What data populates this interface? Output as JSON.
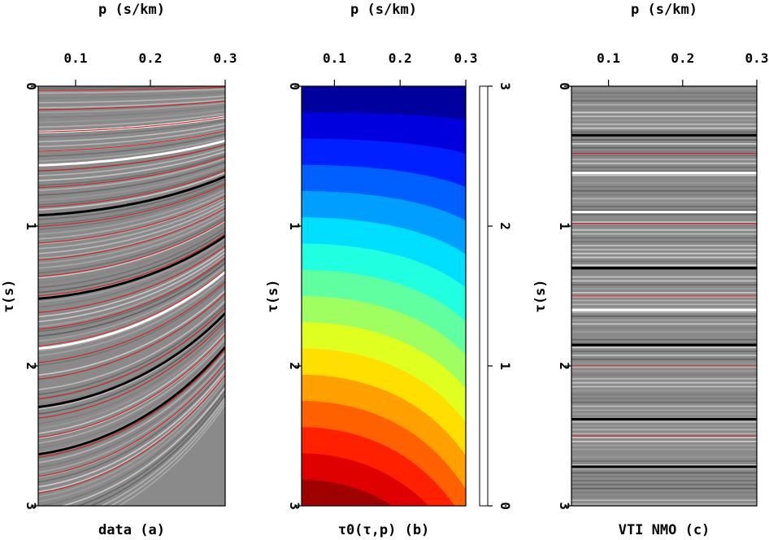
{
  "chart_data": [
    {
      "type": "seismic-image",
      "title": "p (s/km)",
      "xlabel": "p (s/km)",
      "ylabel": "τ(s)",
      "caption": "data (a)",
      "xlim": [
        0.05,
        0.3
      ],
      "ylim": [
        0,
        3
      ],
      "xticks": [
        0.1,
        0.2,
        0.3
      ],
      "yticks": [
        0,
        1,
        2,
        3
      ],
      "xtick_labels": [
        "0.1",
        "0.2",
        "0.3"
      ],
      "ytick_labels": [
        "0",
        "1",
        "2",
        "3"
      ],
      "colormap": "grayscale",
      "overlay": "red traveltime curves",
      "red_curves_tau0": [
        0.08,
        0.22,
        0.38,
        0.52,
        0.66,
        0.78,
        0.92,
        1.06,
        1.18,
        1.3,
        1.42,
        1.56,
        1.68,
        1.8,
        1.92,
        2.04,
        2.16,
        2.3,
        2.44,
        2.58,
        2.72,
        2.86,
        2.98
      ],
      "strong_events": [
        {
          "tau0": 0.38,
          "polarity": "white"
        },
        {
          "tau0": 0.62,
          "polarity": "white"
        },
        {
          "tau0": 0.98,
          "polarity": "black"
        },
        {
          "tau0": 1.58,
          "polarity": "black"
        },
        {
          "tau0": 1.94,
          "polarity": "white"
        },
        {
          "tau0": 2.36,
          "polarity": "black"
        },
        {
          "tau0": 2.7,
          "polarity": "black"
        }
      ]
    },
    {
      "type": "heatmap",
      "title": "p (s/km)",
      "xlabel": "p (s/km)",
      "ylabel": "τ(s)",
      "caption": "τ0(τ,p) (b)",
      "xlim": [
        0.05,
        0.3
      ],
      "ylim": [
        0,
        3
      ],
      "xticks": [
        0.1,
        0.2,
        0.3
      ],
      "yticks": [
        0,
        1,
        2,
        3
      ],
      "xtick_labels": [
        "0.1",
        "0.2",
        "0.3"
      ],
      "ytick_labels": [
        "0",
        "1",
        "2",
        "3"
      ],
      "colormap": "jet",
      "colorbar_range": [
        0,
        3
      ],
      "colorbar_ticks": [
        0,
        1,
        2,
        3
      ],
      "colorbar_tick_labels": [
        "0",
        "1",
        "2",
        "3"
      ],
      "contour_levels": 16,
      "value_at_p_min_by_tau": [
        [
          0,
          0
        ],
        [
          1,
          1
        ],
        [
          2,
          2
        ],
        [
          3,
          3
        ]
      ],
      "value_at_p_max_by_tau": [
        [
          0,
          0
        ],
        [
          1,
          0.55
        ],
        [
          2,
          1.5
        ],
        [
          3,
          2.5
        ]
      ]
    },
    {
      "type": "seismic-image",
      "title": "p (s/km)",
      "xlabel": "p (s/km)",
      "ylabel": "τ(s)",
      "caption": "VTI NMO (c)",
      "xlim": [
        0.05,
        0.3
      ],
      "ylim": [
        0,
        3
      ],
      "xticks": [
        0.1,
        0.2,
        0.3
      ],
      "yticks": [
        0,
        1,
        2,
        3
      ],
      "xtick_labels": [
        "0.1",
        "0.2",
        "0.3"
      ],
      "ytick_labels": [
        "0",
        "1",
        "2",
        "3"
      ],
      "colormap": "grayscale",
      "overlay": "flat red lines",
      "red_lines_tau": [
        0.0,
        0.48,
        0.98,
        1.5,
        2.0,
        2.5,
        3.0
      ],
      "strong_events": [
        {
          "tau0": 0.35,
          "polarity": "black"
        },
        {
          "tau0": 0.62,
          "polarity": "white"
        },
        {
          "tau0": 0.9,
          "polarity": "white"
        },
        {
          "tau0": 1.3,
          "polarity": "black"
        },
        {
          "tau0": 1.6,
          "polarity": "white"
        },
        {
          "tau0": 1.85,
          "polarity": "black"
        },
        {
          "tau0": 2.38,
          "polarity": "black"
        },
        {
          "tau0": 2.72,
          "polarity": "black"
        }
      ]
    }
  ]
}
